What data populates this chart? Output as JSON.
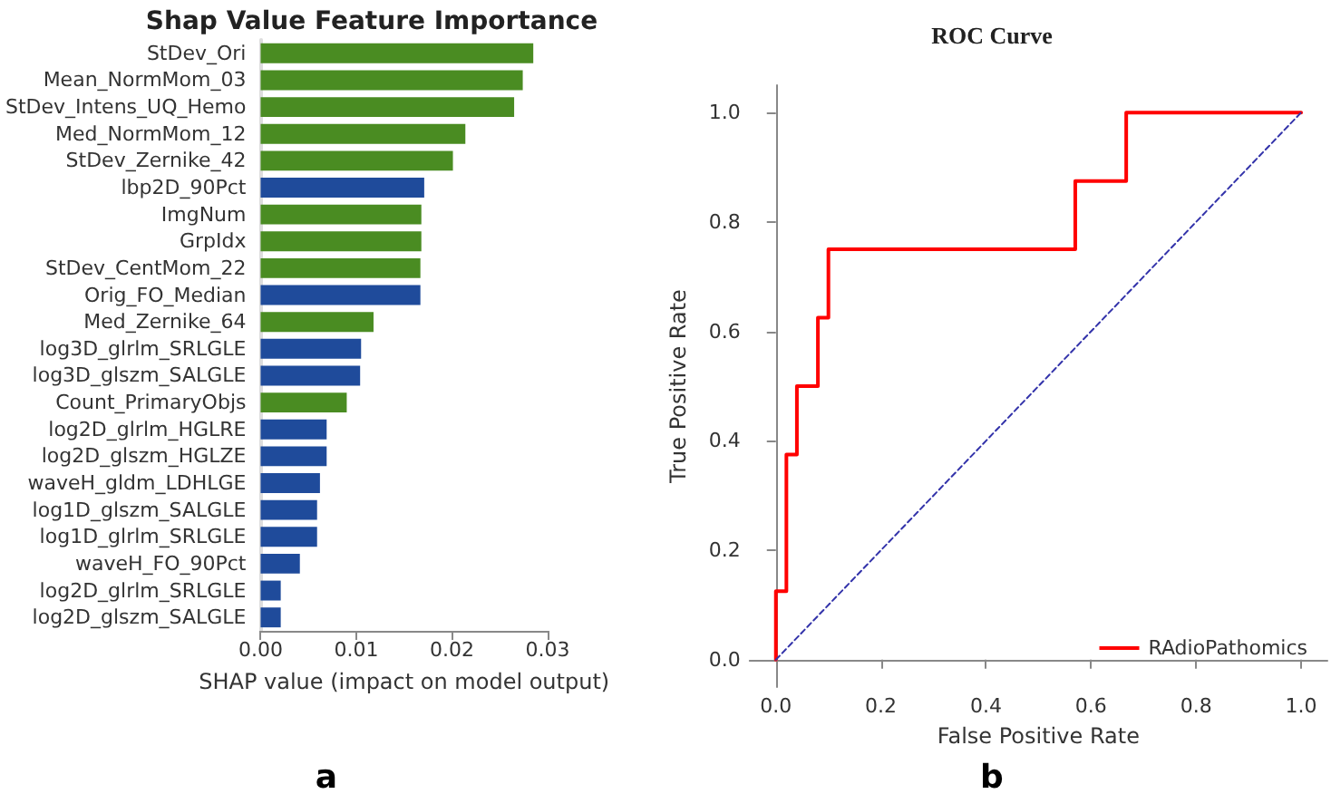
{
  "chart_data": [
    {
      "type": "bar",
      "orientation": "horizontal",
      "title": "Shap Value Feature Importance",
      "xlabel": "SHAP value (impact on model output)",
      "annotations": [
        "a"
      ],
      "categories": [
        "StDev_Ori",
        "Mean_NormMom_03",
        "StDev_Intens_UQ_Hemo",
        "Med_NormMom_12",
        "StDev_Zernike_42",
        "lbp2D_90Pct",
        "ImgNum",
        "GrpIdx",
        "StDev_CentMom_22",
        "Orig_FO_Median",
        "Med_Zernike_64",
        "log3D_glrlm_SRLGLE",
        "log3D_glszm_SALGLE",
        "Count_PrimaryObjs",
        "log2D_glrlm_HGLRE",
        "log2D_glszm_HGLZE",
        "waveH_gldm_LDHLGE",
        "log1D_glszm_SALGLE",
        "log1D_glrlm_SRLGLE",
        "waveH_FO_90Pct",
        "log2D_glrlm_SRLGLE",
        "log2D_glszm_SALGLE"
      ],
      "values": [
        0.0285,
        0.0274,
        0.0265,
        0.0214,
        0.0201,
        0.0171,
        0.0168,
        0.0168,
        0.0167,
        0.0167,
        0.0118,
        0.0105,
        0.0104,
        0.009,
        0.0069,
        0.0069,
        0.0062,
        0.0059,
        0.0059,
        0.0041,
        0.0021,
        0.0021
      ],
      "colors": [
        "#4a8c22",
        "#4a8c22",
        "#4a8c22",
        "#4a8c22",
        "#4a8c22",
        "#1f4b9b",
        "#4a8c22",
        "#4a8c22",
        "#4a8c22",
        "#1f4b9b",
        "#4a8c22",
        "#1f4b9b",
        "#1f4b9b",
        "#4a8c22",
        "#1f4b9b",
        "#1f4b9b",
        "#1f4b9b",
        "#1f4b9b",
        "#1f4b9b",
        "#1f4b9b",
        "#1f4b9b",
        "#1f4b9b"
      ],
      "xlim": [
        0,
        0.03
      ],
      "xticks": [
        {
          "value": 0,
          "label": "0.00"
        },
        {
          "value": 0.01,
          "label": "0.01"
        },
        {
          "value": 0.02,
          "label": "0.02"
        },
        {
          "value": 0.03,
          "label": "0.03"
        }
      ],
      "grid": false,
      "legend": false
    },
    {
      "type": "step",
      "title": "ROC Curve",
      "xlabel": "False Positive Rate",
      "ylabel": "True Positive Rate",
      "annotations": [
        "b"
      ],
      "legend": "bottom right",
      "grid": false,
      "series": [
        {
          "name": "RAdioPathomics",
          "color": "#ff0000",
          "line_style": "solid",
          "x": [
            0,
            0,
            0.02,
            0.02,
            0.04,
            0.04,
            0.08,
            0.08,
            0.1,
            0.1,
            0.57,
            0.57,
            0.667,
            0.667,
            1
          ],
          "values": [
            0,
            0.125,
            0.125,
            0.375,
            0.375,
            0.5,
            0.5,
            0.625,
            0.625,
            0.75,
            0.75,
            0.875,
            0.875,
            1,
            1
          ]
        },
        {
          "type": "line",
          "color": "#3333aa",
          "line_style": "dashed",
          "x": [
            0,
            1
          ],
          "values": [
            0,
            1
          ]
        }
      ],
      "xlim": [
        -0.05,
        1.05
      ],
      "ylim": [
        -0.05,
        1.05
      ],
      "xticks": [
        {
          "value": 0,
          "label": "0.0"
        },
        0.2,
        0.4,
        0.6,
        0.8,
        {
          "value": 1,
          "label": "1.0"
        }
      ],
      "yticks": [
        {
          "value": 0,
          "label": "0.0"
        },
        0.2,
        0.4,
        0.6,
        0.8,
        {
          "value": 1,
          "label": "1.0"
        }
      ]
    }
  ]
}
